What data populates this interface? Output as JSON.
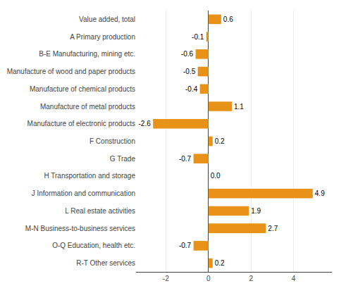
{
  "chart_data": {
    "type": "bar",
    "orientation": "horizontal",
    "categories": [
      "Value added, total",
      "A Primary production",
      "B-E Manufacturing, mining etc.",
      "Manufacture of wood and paper products",
      "Manufacture of chemical products",
      "Manufacture of metal products",
      "Manufacture of electronic products",
      "F Construction",
      "G Trade",
      "H Transportation and storage",
      "J Information and communication",
      "L Real estate activities",
      "M-N Business-to-business services",
      "O-Q Education, health etc.",
      "R-T Other services"
    ],
    "values": [
      0.6,
      -0.1,
      -0.6,
      -0.5,
      -0.4,
      1.1,
      -2.6,
      0.2,
      -0.7,
      0.0,
      4.9,
      1.9,
      2.7,
      -0.7,
      0.2
    ],
    "value_labels": [
      "0.6",
      "-0.1",
      "-0.6",
      "-0.5",
      "-0.4",
      "1.1",
      "-2.6",
      "0.2",
      "-0.7",
      "0.0",
      "4.9",
      "1.9",
      "2.7",
      "-0.7",
      "0.2"
    ],
    "data_labels": true,
    "color": "#E8921A",
    "xlim": [
      -3.4,
      5.8
    ],
    "xticks": [
      -2,
      0,
      2,
      4
    ],
    "grid": true
  }
}
